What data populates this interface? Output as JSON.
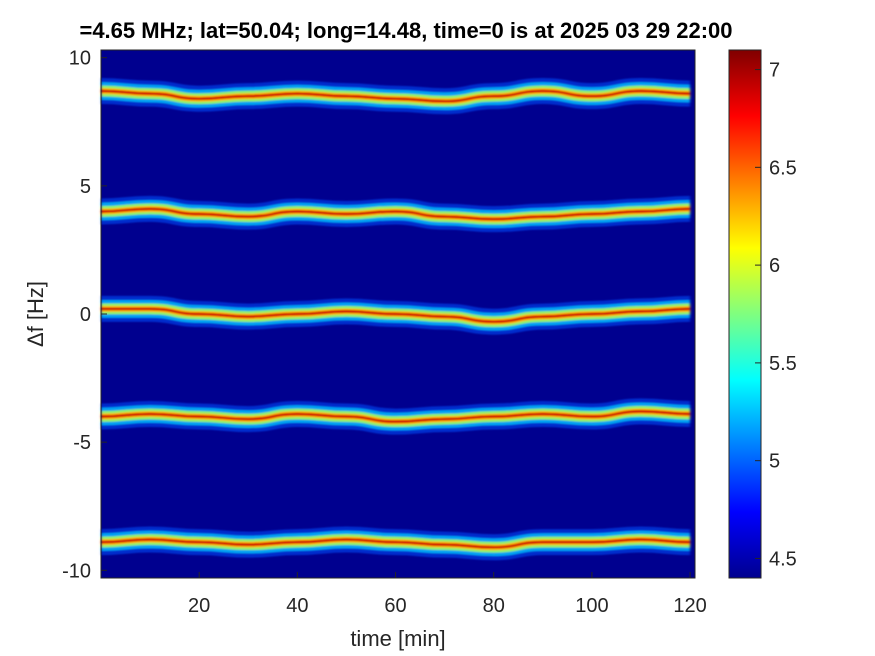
{
  "chart_data": {
    "type": "heatmap",
    "title": "=4.65 MHz;  lat=50.04; long=14.48, time=0 is at 2025 03 29 22:00",
    "xlabel": "time [min]",
    "ylabel": "Δf [Hz]",
    "xlim": [
      0,
      121
    ],
    "ylim": [
      -10.3,
      10.3
    ],
    "xticks": [
      20,
      40,
      60,
      80,
      100,
      120
    ],
    "yticks": [
      10,
      5,
      0,
      -5,
      -10
    ],
    "colorbar": {
      "clim": [
        4.4,
        7.1
      ],
      "ticks": [
        7,
        6.5,
        6,
        5.5,
        5,
        4.5
      ],
      "colormap": "jet"
    },
    "background_color": "#00008f",
    "series": [
      {
        "name": "",
        "values": [
          [
            0,
            8.7
          ],
          [
            10,
            8.6
          ],
          [
            20,
            8.4
          ],
          [
            30,
            8.5
          ],
          [
            40,
            8.6
          ],
          [
            50,
            8.5
          ],
          [
            60,
            8.4
          ],
          [
            70,
            8.3
          ],
          [
            80,
            8.5
          ],
          [
            90,
            8.7
          ],
          [
            100,
            8.5
          ],
          [
            110,
            8.7
          ],
          [
            120,
            8.6
          ]
        ]
      },
      {
        "name": "",
        "values": [
          [
            0,
            4.0
          ],
          [
            10,
            4.1
          ],
          [
            20,
            3.9
          ],
          [
            30,
            3.8
          ],
          [
            40,
            4.0
          ],
          [
            50,
            3.9
          ],
          [
            60,
            4.0
          ],
          [
            70,
            3.8
          ],
          [
            80,
            3.7
          ],
          [
            90,
            3.8
          ],
          [
            100,
            3.9
          ],
          [
            110,
            4.0
          ],
          [
            120,
            4.1
          ]
        ]
      },
      {
        "name": "",
        "values": [
          [
            0,
            0.2
          ],
          [
            10,
            0.2
          ],
          [
            20,
            0.0
          ],
          [
            30,
            -0.1
          ],
          [
            40,
            0.0
          ],
          [
            50,
            0.1
          ],
          [
            60,
            0.0
          ],
          [
            70,
            -0.1
          ],
          [
            80,
            -0.3
          ],
          [
            90,
            -0.1
          ],
          [
            100,
            0.0
          ],
          [
            110,
            0.1
          ],
          [
            120,
            0.2
          ]
        ]
      },
      {
        "name": "",
        "values": [
          [
            0,
            -4.0
          ],
          [
            10,
            -3.9
          ],
          [
            20,
            -4.0
          ],
          [
            30,
            -4.1
          ],
          [
            40,
            -3.9
          ],
          [
            50,
            -4.0
          ],
          [
            60,
            -4.2
          ],
          [
            70,
            -4.1
          ],
          [
            80,
            -4.0
          ],
          [
            90,
            -3.9
          ],
          [
            100,
            -4.0
          ],
          [
            110,
            -3.8
          ],
          [
            120,
            -3.9
          ]
        ]
      },
      {
        "name": "",
        "values": [
          [
            0,
            -8.9
          ],
          [
            10,
            -8.8
          ],
          [
            20,
            -8.9
          ],
          [
            30,
            -9.0
          ],
          [
            40,
            -8.9
          ],
          [
            50,
            -8.8
          ],
          [
            60,
            -8.9
          ],
          [
            70,
            -9.0
          ],
          [
            80,
            -9.1
          ],
          [
            90,
            -8.9
          ],
          [
            100,
            -8.9
          ],
          [
            110,
            -8.8
          ],
          [
            120,
            -8.9
          ]
        ]
      }
    ]
  }
}
